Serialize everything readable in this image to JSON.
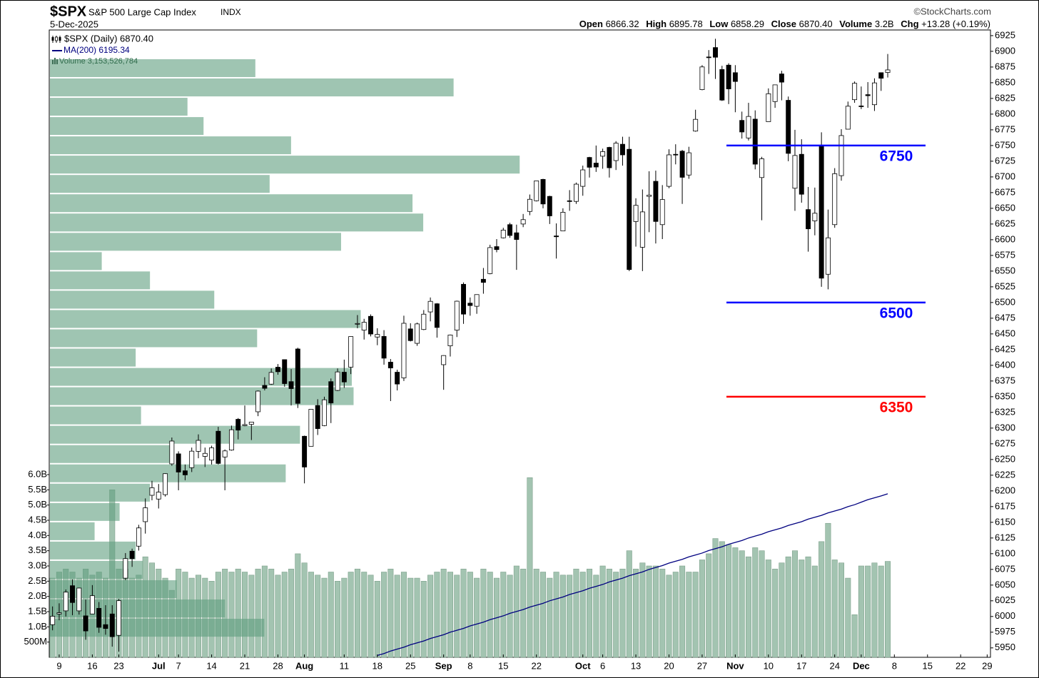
{
  "chart_data": {
    "type": "candlestick",
    "title": "$SPX",
    "subtitle": "S&P 500 Large Cap Index",
    "exchange": "INDX",
    "date": "5-Dec-2025",
    "source": "©StockCharts.com",
    "quote": [
      {
        "label": "Open",
        "value": "6866.32"
      },
      {
        "label": "High",
        "value": "6895.78"
      },
      {
        "label": "Low",
        "value": "6858.29"
      },
      {
        "label": "Close",
        "value": "6870.40"
      },
      {
        "label": "Volume",
        "value": "3.2B"
      },
      {
        "label": "Chg",
        "value": "+13.28 (+0.19%)"
      }
    ],
    "categories": [
      null,
      "9",
      null,
      null,
      null,
      null,
      "16",
      null,
      null,
      null,
      "23",
      null,
      null,
      null,
      null,
      null,
      "Jul",
      null,
      null,
      "7",
      null,
      null,
      null,
      null,
      "14",
      null,
      null,
      null,
      null,
      "21",
      null,
      null,
      null,
      null,
      "28",
      null,
      null,
      null,
      "Aug",
      null,
      null,
      null,
      null,
      null,
      "11",
      null,
      null,
      null,
      null,
      "18",
      null,
      null,
      null,
      null,
      "25",
      null,
      null,
      null,
      null,
      "Sep",
      null,
      null,
      null,
      "8",
      null,
      null,
      null,
      null,
      "15",
      null,
      null,
      null,
      null,
      "22",
      null,
      null,
      null,
      null,
      null,
      null,
      "Oct",
      null,
      null,
      "6",
      null,
      null,
      null,
      null,
      "13",
      null,
      null,
      null,
      null,
      "20",
      null,
      null,
      null,
      null,
      "27",
      null,
      null,
      null,
      null,
      "Nov",
      null,
      null,
      null,
      null,
      "10",
      null,
      null,
      null,
      null,
      "17",
      null,
      null,
      null,
      null,
      "24",
      null,
      null,
      null,
      "Dec",
      null,
      null,
      null,
      null,
      "8",
      null,
      null,
      null,
      null,
      "15",
      null,
      null,
      null,
      null,
      "22",
      null,
      null,
      null,
      "29"
    ],
    "ohlc": {
      "name": "$SPX (Daily) 6870.40",
      "up_color": "#ffffff",
      "down_color": "#000000",
      "open": [
        5987,
        6004,
        6009,
        6049,
        6009,
        6001,
        6004,
        6013,
        5987,
        6004,
        5970,
        6061,
        6104,
        6112,
        6151,
        6193,
        6187,
        6194,
        6243,
        6259,
        6232,
        6237,
        6263,
        6255,
        6249,
        6295,
        6254,
        6265,
        6314,
        6304,
        6306,
        6326,
        6368,
        6370,
        6397,
        6409,
        6374,
        6426,
        6287,
        6271,
        6336,
        6304,
        6374,
        6360,
        6389,
        6397,
        6466,
        6456,
        6478,
        6445,
        6446,
        6405,
        6389,
        6380,
        6458,
        6435,
        6457,
        6485,
        6498,
        6401,
        6431,
        6456,
        6529,
        6499,
        6494,
        6537,
        6546,
        6589,
        6603,
        6624,
        6611,
        6625,
        6645,
        6662,
        6696,
        6669,
        6606,
        6614,
        6662,
        6661,
        6685,
        6731,
        6722,
        6733,
        6747,
        6726,
        6752,
        6744,
        6629,
        6588,
        6669,
        6693,
        6624,
        6685,
        6736,
        6741,
        6703,
        6773,
        6839,
        6891,
        6906,
        6871,
        6878,
        6866,
        6790,
        6762,
        6792,
        6699,
        6788,
        6820,
        6864,
        6822,
        6682,
        6736,
        6648,
        6630,
        6750,
        6545,
        6624,
        6702,
        6776,
        6823,
        6813,
        6831,
        6815,
        6866,
        6866.32,
        null,
        null,
        null,
        null,
        null,
        null,
        null,
        null,
        null,
        null,
        null,
        null,
        null,
        null,
        null
      ],
      "high": [
        6016,
        6021,
        6043,
        6059,
        6046,
        6027,
        6050,
        6023,
        6018,
        6018,
        6028,
        6101,
        6108,
        6146,
        6188,
        6216,
        6211,
        6228,
        6285,
        6263,
        6242,
        6269,
        6290,
        6269,
        6272,
        6302,
        6266,
        6304,
        6316,
        6336,
        6310,
        6360,
        6381,
        6395,
        6402,
        6409,
        6394,
        6428,
        6288,
        6330,
        6346,
        6350,
        6379,
        6395,
        6409,
        6446,
        6480,
        6474,
        6481,
        6459,
        6456,
        6410,
        6393,
        6479,
        6467,
        6468,
        6488,
        6508,
        6499,
        6416,
        6449,
        6503,
        6532,
        6508,
        6513,
        6555,
        6592,
        6601,
        6619,
        6627,
        6624,
        6641,
        6672,
        6694,
        6697,
        6670,
        6626,
        6650,
        6679,
        6691,
        6718,
        6732,
        6750,
        6745,
        6748,
        6757,
        6764,
        6764,
        6666,
        6680,
        6709,
        6710,
        6687,
        6744,
        6752,
        6743,
        6748,
        6807,
        6878,
        6902,
        6920,
        6877,
        6881,
        6878,
        6804,
        6818,
        6806,
        6732,
        6841,
        6847,
        6869,
        6828,
        6775,
        6760,
        6684,
        6683,
        6771,
        6648,
        6714,
        6776,
        6820,
        6852,
        6844,
        6851,
        6857,
        6866,
        6895.78,
        null,
        null,
        null,
        null,
        null,
        null,
        null,
        null,
        null,
        null,
        null,
        null,
        null,
        null,
        null
      ],
      "low": [
        5978,
        5994,
        6000,
        6002,
        6003,
        5963,
        6004,
        5974,
        5971,
        5952,
        5944,
        6058,
        6079,
        6105,
        6132,
        6185,
        6172,
        6191,
        6240,
        6201,
        6217,
        6230,
        6252,
        6238,
        6242,
        6242,
        6201,
        6264,
        6282,
        6303,
        6281,
        6319,
        6360,
        6369,
        6385,
        6366,
        6336,
        6332,
        6212,
        6271,
        6289,
        6303,
        6308,
        6359,
        6364,
        6386,
        6459,
        6441,
        6446,
        6432,
        6401,
        6343,
        6360,
        6375,
        6438,
        6431,
        6456,
        6470,
        6444,
        6361,
        6414,
        6445,
        6466,
        6479,
        6482,
        6514,
        6545,
        6580,
        6602,
        6603,
        6552,
        6620,
        6639,
        6661,
        6650,
        6625,
        6570,
        6614,
        6646,
        6657,
        6670,
        6699,
        6708,
        6713,
        6699,
        6711,
        6718,
        6550,
        6589,
        6550,
        6612,
        6594,
        6601,
        6682,
        6720,
        6657,
        6697,
        6772,
        6838,
        6864,
        6856,
        6821,
        6816,
        6803,
        6761,
        6758,
        6712,
        6631,
        6788,
        6810,
        6822,
        6725,
        6646,
        6659,
        6581,
        6607,
        6525,
        6521,
        6619,
        6694,
        6776,
        6818,
        6808,
        6810,
        6805,
        6837,
        6858.29,
        null,
        null,
        null,
        null,
        null,
        null,
        null,
        null,
        null,
        null,
        null,
        null,
        null,
        null,
        null
      ],
      "close": [
        6000.36,
        6005.88,
        6038.81,
        6022.24,
        6045.26,
        5976.97,
        6033.11,
        5982.72,
        5980.87,
        5967.84,
        6025.17,
        6092.18,
        6092.16,
        6141.02,
        6173.07,
        6204.95,
        6198.01,
        6227.42,
        6279.35,
        6229.98,
        6225.52,
        6263.26,
        6280.46,
        6259.75,
        6268.56,
        6243.76,
        6263.7,
        6297.36,
        6296.79,
        6305.6,
        6309.62,
        6358.91,
        6363.35,
        6388.64,
        6389.77,
        6370.86,
        6362.9,
        6339.39,
        6238.01,
        6329.94,
        6299.19,
        6345.06,
        6340.0,
        6389.45,
        6373.45,
        6445.76,
        6466.58,
        6468.54,
        6449.8,
        6449.15,
        6411.37,
        6395.78,
        6370.17,
        6466.91,
        6439.32,
        6465.94,
        6481.4,
        6501.86,
        6460.26,
        6415.54,
        6448.26,
        6502.08,
        6481.5,
        6495.15,
        6512.61,
        6532.04,
        6587.47,
        6584.29,
        6615.28,
        6606.76,
        6600.35,
        6631.96,
        6664.36,
        6693.75,
        6656.92,
        6637.97,
        6604.72,
        6643.7,
        6661.21,
        6688.46,
        6711.2,
        6715.35,
        6715.79,
        6740.28,
        6714.59,
        6753.72,
        6735.11,
        6552.51,
        6654.72,
        6644.31,
        6671.06,
        6629.07,
        6664.01,
        6735.13,
        6735.35,
        6699.4,
        6738.44,
        6791.69,
        6875.16,
        6890.89,
        6890.59,
        6822.34,
        6840.2,
        6851.97,
        6771.55,
        6796.29,
        6720.32,
        6728.8,
        6832.43,
        6846.61,
        6850.92,
        6737.49,
        6734.11,
        6672.41,
        6617.32,
        6642.16,
        6538.76,
        6602.99,
        6705.12,
        6765.88,
        6812.61,
        6849.09,
        6812.63,
        6829.37,
        6849.72,
        6857.12,
        6870.4,
        null,
        null,
        null,
        null,
        null,
        null,
        null,
        null,
        null,
        null,
        null,
        null,
        null,
        null,
        null
      ]
    },
    "series": [
      {
        "name": "MA(200) 6195.34",
        "color": "#000080",
        "values": [
          null,
          null,
          null,
          null,
          null,
          null,
          null,
          null,
          null,
          null,
          null,
          null,
          null,
          null,
          null,
          null,
          null,
          null,
          null,
          null,
          null,
          null,
          null,
          null,
          null,
          null,
          null,
          null,
          null,
          null,
          null,
          null,
          null,
          null,
          null,
          null,
          null,
          null,
          null,
          null,
          null,
          null,
          null,
          null,
          null,
          null,
          null,
          null,
          null,
          5938,
          5941,
          5945,
          5948,
          5951,
          5955,
          5958,
          5961,
          5965,
          5968,
          5971,
          5975,
          5978,
          5981,
          5985,
          5988,
          5991,
          5995,
          5998,
          6001,
          6005,
          6008,
          6011,
          6015,
          6018,
          6021,
          6025,
          6028,
          6031,
          6035,
          6038,
          6041,
          6045,
          6048,
          6051,
          6055,
          6058,
          6061,
          6065,
          6068,
          6071,
          6075,
          6078,
          6081,
          6085,
          6088,
          6091,
          6095,
          6098,
          6101,
          6105,
          6108,
          6111,
          6115,
          6118,
          6121,
          6125,
          6128,
          6131,
          6135,
          6138,
          6141,
          6145,
          6148,
          6151,
          6155,
          6158,
          6161,
          6165,
          6168,
          6171,
          6175,
          6178,
          6182,
          6186,
          6189,
          6192,
          6195.34,
          null,
          null,
          null,
          null,
          null,
          null,
          null,
          null,
          null,
          null,
          null,
          null,
          null,
          null,
          null
        ]
      }
    ],
    "volume": {
      "name": "Volume 3,153,526,784",
      "color": "#a3c4b1",
      "values": [
        2.6,
        2.8,
        2.9,
        2.8,
        2.6,
        2.9,
        2.7,
        2.8,
        2.6,
        5.5,
        2.9,
        2.9,
        2.6,
        2.7,
        3.3,
        3.1,
        2.9,
        2.6,
        2.2,
        2.9,
        2.8,
        2.6,
        2.7,
        2.6,
        2.5,
        2.8,
        2.9,
        2.8,
        2.9,
        2.8,
        2.7,
        2.9,
        3.0,
        2.9,
        2.7,
        2.8,
        2.9,
        3.4,
        3.1,
        2.8,
        2.7,
        2.6,
        2.8,
        2.5,
        2.6,
        2.8,
        2.9,
        2.8,
        2.7,
        2.5,
        2.8,
        2.9,
        2.7,
        2.8,
        2.6,
        2.6,
        2.5,
        2.7,
        2.8,
        2.9,
        2.8,
        2.7,
        2.9,
        2.8,
        2.6,
        2.9,
        2.8,
        2.6,
        2.8,
        2.7,
        3.0,
        2.9,
        5.9,
        2.9,
        2.8,
        2.6,
        2.8,
        2.7,
        2.7,
        2.9,
        2.8,
        2.9,
        2.7,
        3.0,
        2.9,
        2.8,
        2.9,
        3.5,
        2.9,
        3.1,
        3.0,
        3.0,
        2.9,
        2.7,
        2.8,
        3.0,
        2.8,
        2.8,
        3.2,
        3.4,
        3.9,
        3.8,
        3.7,
        3.6,
        3.5,
        3.3,
        3.6,
        3.5,
        3.2,
        2.9,
        3.1,
        3.3,
        3.5,
        3.2,
        3.3,
        3.0,
        3.8,
        4.4,
        3.2,
        3.1,
        2.6,
        1.4,
        3.0,
        3.0,
        3.1,
        3.0,
        3.15,
        null,
        null,
        null,
        null,
        null,
        null,
        null,
        null,
        null,
        null,
        null,
        null,
        null,
        null,
        null
      ],
      "ylim": [
        0,
        20.6
      ],
      "yticks": [
        {
          "value": 0.5,
          "label": "500M"
        },
        {
          "value": 1,
          "label": "1.0B"
        },
        {
          "value": 1.5,
          "label": "1.5B"
        },
        {
          "value": 2,
          "label": "2.0B"
        },
        {
          "value": 2.5,
          "label": "2.5B"
        },
        {
          "value": 3,
          "label": "3.0B"
        },
        {
          "value": 3.5,
          "label": "3.5B"
        },
        {
          "value": 4,
          "label": "4.0B"
        },
        {
          "value": 4.5,
          "label": "4.5B"
        },
        {
          "value": 5,
          "label": "5.0B"
        },
        {
          "value": 5.5,
          "label": "5.5B"
        },
        {
          "value": 6,
          "label": "6.0B"
        }
      ]
    },
    "volume_by_price": {
      "color": "#5f9e7e",
      "xlim": [
        0,
        52.7
      ],
      "bins": [
        5966.7,
        5997.5,
        6028.2,
        6058.9,
        6089.7,
        6120.4,
        6151.1,
        6181.8,
        6212.6,
        6243.3,
        6274.0,
        6304.8,
        6335.5,
        6366.2,
        6396.9,
        6427.7,
        6458.4,
        6489.1,
        6519.9,
        6550.6,
        6581.3,
        6612.0,
        6642.8,
        6673.5,
        6704.2,
        6735.0,
        6765.7,
        6796.4,
        6827.1,
        6857.9,
        6888.6
      ],
      "values": [
        12.0,
        9.8,
        7.1,
        5.2,
        4.8,
        2.5,
        3.9,
        5.6,
        13.2,
        6.8,
        14.0,
        5.1,
        17.0,
        16.9,
        4.8,
        11.6,
        17.4,
        9.2,
        5.6,
        2.9,
        16.3,
        20.9,
        20.3,
        12.3,
        26.3,
        13.5,
        8.6,
        7.7,
        22.6,
        11.5
      ]
    },
    "levels": [
      {
        "value": 6750,
        "color": "#0000ff"
      },
      {
        "value": 6500,
        "color": "#0000ff"
      },
      {
        "value": 6350,
        "color": "#ff0000"
      }
    ],
    "ylim": [
      5935,
      6934
    ],
    "yticks": [
      5950,
      5975,
      6000,
      6025,
      6050,
      6075,
      6100,
      6125,
      6150,
      6175,
      6200,
      6225,
      6250,
      6275,
      6300,
      6325,
      6350,
      6375,
      6400,
      6425,
      6450,
      6475,
      6500,
      6525,
      6550,
      6575,
      6600,
      6625,
      6650,
      6675,
      6700,
      6725,
      6750,
      6775,
      6800,
      6825,
      6850,
      6875,
      6900,
      6925
    ]
  }
}
